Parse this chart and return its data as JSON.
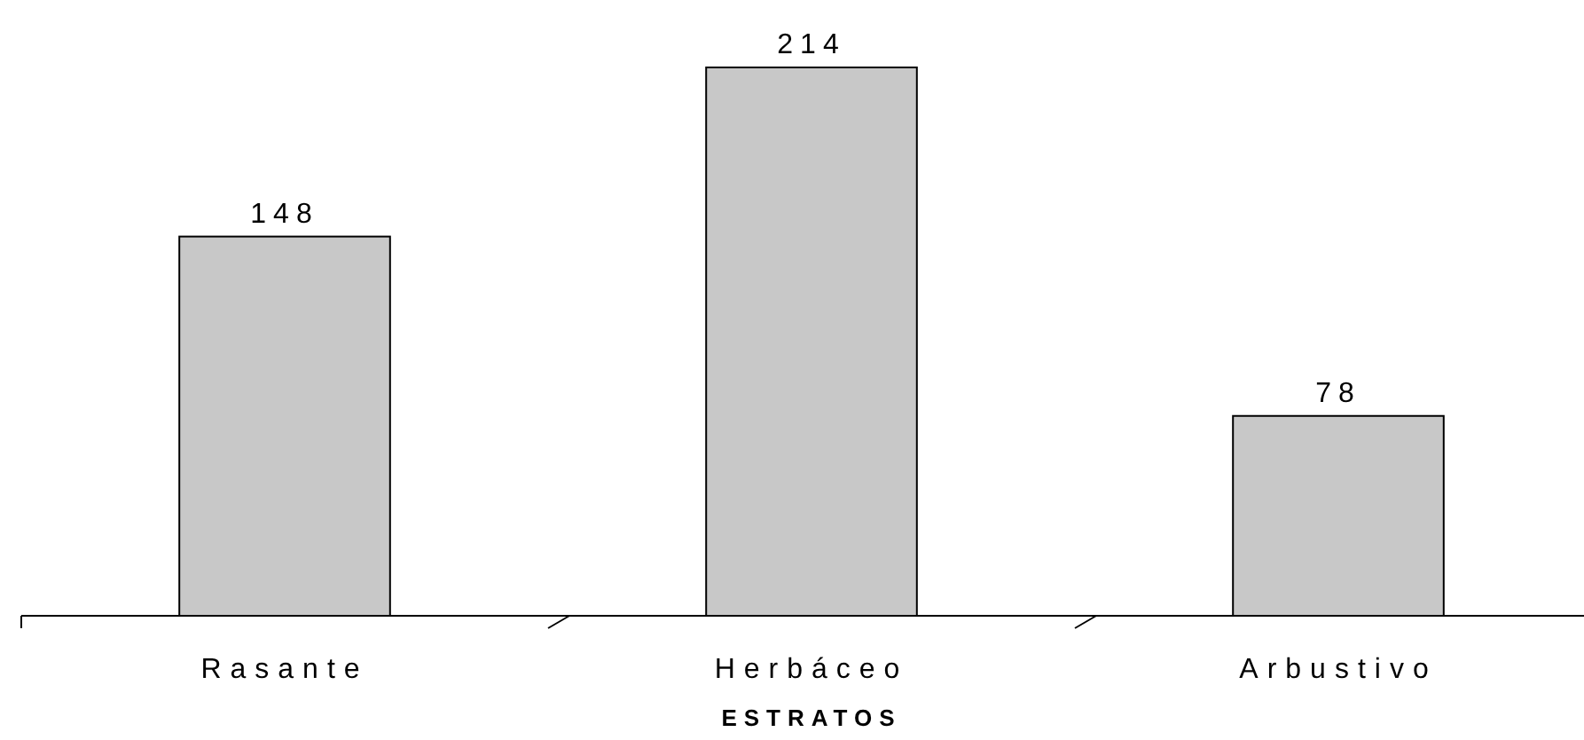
{
  "chart_data": {
    "type": "bar",
    "xlabel": "ESTRATOS",
    "categories": [
      "Rasante",
      "Herbáceo",
      "Arbustivo"
    ],
    "values": [
      148,
      214,
      78
    ],
    "color": "#c8c8c8",
    "data_labels": true
  }
}
